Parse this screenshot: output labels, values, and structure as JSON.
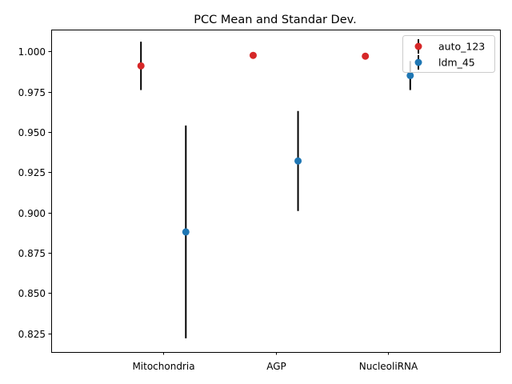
{
  "chart_data": {
    "type": "scatter",
    "title": "PCC Mean and Standar Dev.",
    "xlabel": "",
    "ylabel": "",
    "categories": [
      "Mitochondria",
      "AGP",
      "NucleoliRNA"
    ],
    "ylim": [
      0.8135,
      1.0135
    ],
    "yticks": [
      0.825,
      0.85,
      0.875,
      0.9,
      0.925,
      0.95,
      0.975,
      1.0
    ],
    "ytick_labels": [
      "0.825",
      "0.850",
      "0.875",
      "0.900",
      "0.925",
      "0.950",
      "0.975",
      "1.000"
    ],
    "grid": false,
    "legend_position": "top-right",
    "series": [
      {
        "name": "auto_123",
        "color": "#d62728",
        "offset": -0.2,
        "values": [
          0.991,
          0.9975,
          0.997
        ],
        "errors": [
          0.015,
          0,
          0
        ]
      },
      {
        "name": "ldm_45",
        "color": "#1f77b4",
        "offset": 0.2,
        "values": [
          0.888,
          0.932,
          0.985
        ],
        "errors": [
          0.066,
          0.031,
          0.009
        ]
      }
    ]
  }
}
